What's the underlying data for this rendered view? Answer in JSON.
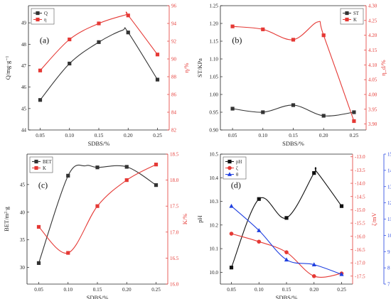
{
  "chart_data": [
    {
      "panel": "a",
      "type": "line",
      "categories": [
        "0.05",
        "0.10",
        "0.15",
        "0.20",
        "0.25"
      ],
      "xlabel": "SDBS/%",
      "ylabel_left": "Q/mg·g⁻¹",
      "ylabel_right": "η/%",
      "left_ticks": [
        "44",
        "45",
        "46",
        "47",
        "48",
        "49"
      ],
      "right_ticks": [
        "82",
        "84",
        "86",
        "88",
        "90",
        "92",
        "94",
        "96"
      ],
      "ylim_left": [
        44,
        49.8
      ],
      "ylim_right": [
        82,
        96
      ],
      "legend_position": "top-left",
      "series": [
        {
          "name": "Q",
          "axis": "left",
          "color": "#333333",
          "marker": "square",
          "values": [
            45.4,
            47.1,
            48.1,
            48.55,
            46.35
          ],
          "peak": [
            0.19,
            48.65
          ]
        },
        {
          "name": "η",
          "axis": "right",
          "color": "#e53935",
          "marker": "square",
          "values": [
            88.7,
            92.2,
            94.0,
            94.9,
            90.5
          ],
          "peak": [
            0.195,
            94.95
          ]
        }
      ]
    },
    {
      "panel": "b",
      "type": "line",
      "categories": [
        "0.05",
        "0.10",
        "0.15",
        "0.20",
        "0.25"
      ],
      "xlabel": "SDBS/%",
      "ylabel_left": "ST/KPa",
      "ylabel_right": "η_d/%",
      "left_ticks": [
        "0.90",
        "0.95",
        "1.00",
        "1.05",
        "1.10",
        "1.15",
        "1.20",
        "1.25"
      ],
      "right_ticks": [
        "3.90",
        "3.95",
        "4.00",
        "4.05",
        "4.10",
        "4.15",
        "4.20",
        "4.25",
        "4.30"
      ],
      "ylim_left": [
        0.9,
        1.25
      ],
      "ylim_right": [
        3.88,
        4.3
      ],
      "legend_position": "top-right",
      "series": [
        {
          "name": "ST",
          "axis": "left",
          "color": "#333333",
          "marker": "square",
          "values": [
            0.96,
            0.95,
            0.97,
            0.94,
            0.95
          ]
        },
        {
          "name": "K",
          "axis": "right",
          "color": "#e53935",
          "marker": "square",
          "values": [
            4.23,
            4.22,
            4.185,
            4.2,
            3.91
          ],
          "peak": [
            0.19,
            4.245
          ]
        }
      ]
    },
    {
      "panel": "c",
      "type": "line",
      "categories": [
        "0.05",
        "0.10",
        "0.15",
        "0.20",
        "0.25"
      ],
      "xlabel": "SDBS/%",
      "ylabel_left": "BET/m²·g",
      "ylabel_right": "K/%",
      "left_ticks": [
        "30",
        "35",
        "40",
        "45"
      ],
      "right_ticks": [
        "16.0",
        "16.5",
        "17.0",
        "17.5",
        "18.0",
        "18.5"
      ],
      "ylim_left": [
        27,
        50.5
      ],
      "ylim_right": [
        16.0,
        18.5
      ],
      "legend_position": "top-left",
      "series": [
        {
          "name": "BET",
          "axis": "left",
          "color": "#333333",
          "marker": "square",
          "values": [
            30.8,
            46.6,
            48.1,
            48.2,
            44.9
          ],
          "peak": [
            0.13,
            48.4
          ]
        },
        {
          "name": "K",
          "axis": "right",
          "color": "#e53935",
          "marker": "square",
          "values": [
            17.1,
            16.6,
            17.5,
            18.0,
            18.3
          ]
        }
      ]
    },
    {
      "panel": "d",
      "type": "line",
      "categories": [
        "0.05",
        "0.10",
        "0.15",
        "0.20",
        "0.25"
      ],
      "xlabel": "SDBS/%",
      "ylabel_left": "pH",
      "ylabel_right": "ζ/mV",
      "ylabel_right2": "θ/°",
      "left_ticks": [
        "10.0",
        "10.1",
        "10.2",
        "10.3",
        "10.4",
        "10.5"
      ],
      "right_ticks": [
        "-13.0",
        "-13.5",
        "-14.0",
        "-14.5",
        "-15.0",
        "-15.5",
        "-16.0",
        "-16.5",
        "-17.0",
        "-17.5"
      ],
      "right2_ticks": [
        "7",
        "8",
        "9",
        "10",
        "11",
        "12",
        "13",
        "14",
        "15"
      ],
      "ylim_left": [
        9.95,
        10.5
      ],
      "ylim_right": [
        -17.8,
        -12.9
      ],
      "ylim_right2": [
        7,
        15
      ],
      "legend_position": "top-left",
      "series": [
        {
          "name": "pH",
          "axis": "left",
          "color": "#111111",
          "marker": "square",
          "values": [
            10.02,
            10.31,
            10.23,
            10.42,
            10.28
          ],
          "peak": [
            0.205,
            10.425
          ]
        },
        {
          "name": "ζ",
          "axis": "right",
          "color": "#e53935",
          "marker": "circle",
          "values": [
            -15.9,
            -16.2,
            -16.6,
            -17.5,
            -17.4
          ]
        },
        {
          "name": "θ",
          "axis": "right2",
          "color": "#1e3fe0",
          "marker": "triangle",
          "values": [
            11.8,
            10.3,
            8.5,
            8.2,
            7.6
          ]
        }
      ]
    }
  ]
}
